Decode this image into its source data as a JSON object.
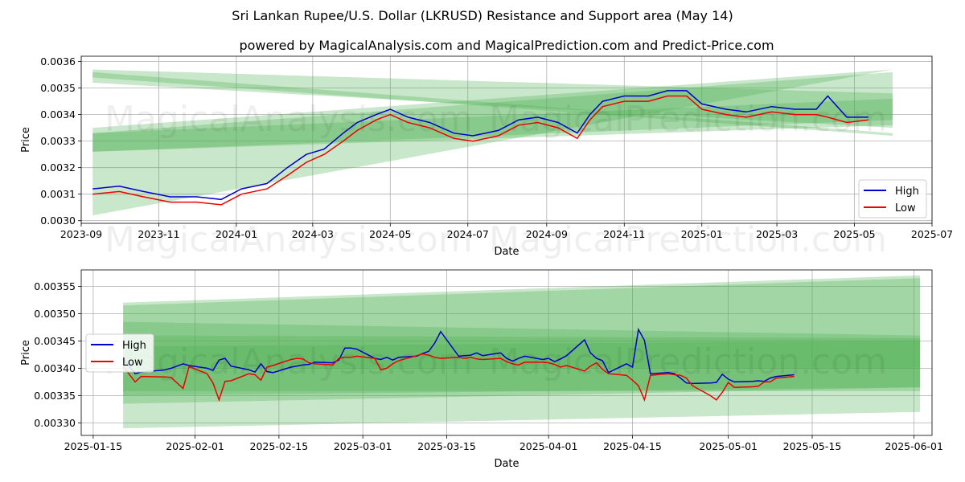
{
  "title": "Sri Lankan Rupee/U.S. Dollar (LKRUSD) Resistance and Support area (May 14)",
  "subtitle": "powered by MagicalAnalysis.com and MagicalPrediction.com and Predict-Price.com",
  "watermarks": [
    "MagicalAnalysis.com",
    "MagicalPrediction.com"
  ],
  "colors": {
    "high": "#0000cc",
    "low": "#ee0000",
    "band": "#4caf50"
  },
  "chart_data": [
    {
      "type": "line",
      "xlabel": "Date",
      "ylabel": "Price",
      "xlim": [
        "2023-09-01",
        "2025-07-01"
      ],
      "ylim": [
        0.00299,
        0.00362
      ],
      "x_ticks": [
        "2023-09",
        "2023-11",
        "2024-01",
        "2024-03",
        "2024-05",
        "2024-07",
        "2024-09",
        "2024-11",
        "2025-01",
        "2025-03",
        "2025-05",
        "2025-07"
      ],
      "x_tick_dates": [
        "2023-09-01",
        "2023-11-01",
        "2024-01-01",
        "2024-03-01",
        "2024-05-01",
        "2024-07-01",
        "2024-09-01",
        "2024-11-01",
        "2025-01-01",
        "2025-03-01",
        "2025-05-01",
        "2025-07-01"
      ],
      "y_ticks": [
        "0.0030",
        "0.0031",
        "0.0032",
        "0.0033",
        "0.0034",
        "0.0035",
        "0.0036"
      ],
      "y_tick_values": [
        0.003,
        0.0031,
        0.0032,
        0.0033,
        0.0034,
        0.0035,
        0.0036
      ],
      "grid": true,
      "legend": "lower right",
      "series": [
        {
          "name": "High",
          "x": [
            "2023-09-10",
            "2023-10-01",
            "2023-10-20",
            "2023-11-10",
            "2023-12-01",
            "2023-12-20",
            "2024-01-05",
            "2024-01-25",
            "2024-02-10",
            "2024-02-25",
            "2024-03-10",
            "2024-03-25",
            "2024-04-05",
            "2024-04-20",
            "2024-05-01",
            "2024-05-15",
            "2024-06-01",
            "2024-06-20",
            "2024-07-05",
            "2024-07-25",
            "2024-08-10",
            "2024-08-25",
            "2024-09-10",
            "2024-09-25",
            "2024-10-05",
            "2024-10-15",
            "2024-11-01",
            "2024-11-20",
            "2024-12-05",
            "2024-12-20",
            "2025-01-01",
            "2025-01-20",
            "2025-02-05",
            "2025-02-25",
            "2025-03-15",
            "2025-04-01",
            "2025-04-10",
            "2025-04-25",
            "2025-05-12"
          ],
          "y": [
            0.00312,
            0.00313,
            0.00311,
            0.00309,
            0.00309,
            0.00308,
            0.00312,
            0.00314,
            0.0032,
            0.00325,
            0.00327,
            0.00333,
            0.00337,
            0.0034,
            0.00342,
            0.00339,
            0.00337,
            0.00333,
            0.00332,
            0.00334,
            0.00338,
            0.00339,
            0.00337,
            0.00333,
            0.0034,
            0.00345,
            0.00347,
            0.00347,
            0.00349,
            0.00349,
            0.00344,
            0.00342,
            0.00341,
            0.00343,
            0.00342,
            0.00342,
            0.00347,
            0.00339,
            0.00339
          ]
        },
        {
          "name": "Low",
          "x": [
            "2023-09-10",
            "2023-10-01",
            "2023-10-20",
            "2023-11-10",
            "2023-12-01",
            "2023-12-20",
            "2024-01-05",
            "2024-01-25",
            "2024-02-10",
            "2024-02-25",
            "2024-03-10",
            "2024-03-25",
            "2024-04-05",
            "2024-04-20",
            "2024-05-01",
            "2024-05-15",
            "2024-06-01",
            "2024-06-20",
            "2024-07-05",
            "2024-07-25",
            "2024-08-10",
            "2024-08-25",
            "2024-09-10",
            "2024-09-25",
            "2024-10-05",
            "2024-10-15",
            "2024-11-01",
            "2024-11-20",
            "2024-12-05",
            "2024-12-20",
            "2025-01-01",
            "2025-01-20",
            "2025-02-05",
            "2025-02-25",
            "2025-03-15",
            "2025-04-01",
            "2025-04-10",
            "2025-04-25",
            "2025-05-12"
          ],
          "y": [
            0.0031,
            0.00311,
            0.00309,
            0.00307,
            0.00307,
            0.00306,
            0.0031,
            0.00312,
            0.00317,
            0.00322,
            0.00325,
            0.0033,
            0.00334,
            0.00338,
            0.0034,
            0.00337,
            0.00335,
            0.00331,
            0.0033,
            0.00332,
            0.00336,
            0.00337,
            0.00335,
            0.00331,
            0.00338,
            0.00343,
            0.00345,
            0.00345,
            0.00347,
            0.00347,
            0.00342,
            0.0034,
            0.00339,
            0.00341,
            0.0034,
            0.0034,
            0.00339,
            0.00337,
            0.00338
          ]
        }
      ],
      "bands": [
        {
          "x": [
            "2023-09-10",
            "2025-05-31"
          ],
          "upper": [
            0.00335,
            0.00357
          ],
          "lower": [
            0.00302,
            0.00357
          ]
        },
        {
          "x": [
            "2023-09-10",
            "2025-05-31"
          ],
          "upper": [
            0.00333,
            0.00356
          ],
          "lower": [
            0.00326,
            0.00336
          ]
        },
        {
          "x": [
            "2023-09-10",
            "2025-05-31"
          ],
          "upper": [
            0.00333,
            0.00346
          ],
          "lower": [
            0.00326,
            0.00338
          ]
        },
        {
          "x": [
            "2023-09-10",
            "2025-05-31"
          ],
          "upper": [
            0.00356,
            0.00333
          ],
          "lower": [
            0.00354,
            0.00332
          ]
        },
        {
          "x": [
            "2023-09-10",
            "2025-05-31"
          ],
          "upper": [
            0.00357,
            0.00348
          ],
          "lower": [
            0.00352,
            0.00335
          ]
        }
      ]
    },
    {
      "type": "line",
      "xlabel": "Date",
      "ylabel": "Price",
      "xlim": [
        "2025-01-13",
        "2025-06-04"
      ],
      "ylim": [
        0.003277,
        0.00358
      ],
      "x_ticks": [
        "2025-01-15",
        "2025-02-01",
        "2025-02-15",
        "2025-03-01",
        "2025-03-15",
        "2025-04-01",
        "2025-04-15",
        "2025-05-01",
        "2025-05-15",
        "2025-06-01"
      ],
      "x_tick_dates": [
        "2025-01-15",
        "2025-02-01",
        "2025-02-15",
        "2025-03-01",
        "2025-03-15",
        "2025-04-01",
        "2025-04-15",
        "2025-05-01",
        "2025-05-15",
        "2025-06-01"
      ],
      "y_ticks": [
        "0.00330",
        "0.00335",
        "0.00340",
        "0.00345",
        "0.00350",
        "0.00355"
      ],
      "y_tick_values": [
        0.0033,
        0.00335,
        0.0034,
        0.00345,
        0.0035,
        0.00355
      ],
      "grid": true,
      "legend": "center left",
      "series": [
        {
          "name": "High",
          "x": [
            "2025-01-20",
            "2025-01-22",
            "2025-01-23",
            "2025-01-27",
            "2025-01-28",
            "2025-01-30",
            "2025-01-31",
            "2025-02-03",
            "2025-02-04",
            "2025-02-05",
            "2025-02-06",
            "2025-02-07",
            "2025-02-10",
            "2025-02-11",
            "2025-02-12",
            "2025-02-13",
            "2025-02-14",
            "2025-02-17",
            "2025-02-18",
            "2025-02-19",
            "2025-02-20",
            "2025-02-21",
            "2025-02-24",
            "2025-02-25",
            "2025-02-26",
            "2025-02-27",
            "2025-02-28",
            "2025-03-03",
            "2025-03-04",
            "2025-03-05",
            "2025-03-06",
            "2025-03-07",
            "2025-03-10",
            "2025-03-11",
            "2025-03-12",
            "2025-03-13",
            "2025-03-14",
            "2025-03-17",
            "2025-03-18",
            "2025-03-19",
            "2025-03-20",
            "2025-03-21",
            "2025-03-24",
            "2025-03-25",
            "2025-03-26",
            "2025-03-27",
            "2025-03-28",
            "2025-03-31",
            "2025-04-01",
            "2025-04-02",
            "2025-04-03",
            "2025-04-04",
            "2025-04-07",
            "2025-04-08",
            "2025-04-09",
            "2025-04-10",
            "2025-04-11",
            "2025-04-14",
            "2025-04-15",
            "2025-04-16",
            "2025-04-17",
            "2025-04-18",
            "2025-04-21",
            "2025-04-22",
            "2025-04-23",
            "2025-04-24",
            "2025-04-25",
            "2025-04-28",
            "2025-04-29",
            "2025-04-30",
            "2025-05-01",
            "2025-05-02",
            "2025-05-05",
            "2025-05-06",
            "2025-05-07",
            "2025-05-08",
            "2025-05-09",
            "2025-05-12"
          ],
          "y": [
            0.003417,
            0.00339,
            0.003393,
            0.003397,
            0.0034,
            0.003408,
            0.003405,
            0.0034,
            0.003396,
            0.003415,
            0.003418,
            0.003404,
            0.003397,
            0.003393,
            0.003408,
            0.003394,
            0.003392,
            0.003402,
            0.003404,
            0.003406,
            0.003407,
            0.003411,
            0.00341,
            0.003415,
            0.003437,
            0.003437,
            0.003435,
            0.003418,
            0.003416,
            0.00342,
            0.003415,
            0.00342,
            0.003422,
            0.003427,
            0.003431,
            0.003446,
            0.003467,
            0.003422,
            0.003423,
            0.003424,
            0.003428,
            0.003423,
            0.003428,
            0.003418,
            0.003413,
            0.003418,
            0.003422,
            0.003416,
            0.003418,
            0.003412,
            0.003417,
            0.003423,
            0.003452,
            0.003428,
            0.003418,
            0.003414,
            0.003392,
            0.003408,
            0.003402,
            0.003471,
            0.003451,
            0.00339,
            0.003392,
            0.00339,
            0.003382,
            0.003373,
            0.003372,
            0.003373,
            0.003374,
            0.003389,
            0.00338,
            0.003375,
            0.003376,
            0.003377,
            0.003376,
            0.003382,
            0.003385,
            0.003388
          ]
        },
        {
          "name": "Low",
          "x": [
            "2025-01-20",
            "2025-01-22",
            "2025-01-23",
            "2025-01-27",
            "2025-01-28",
            "2025-01-30",
            "2025-01-31",
            "2025-02-03",
            "2025-02-04",
            "2025-02-05",
            "2025-02-06",
            "2025-02-07",
            "2025-02-10",
            "2025-02-11",
            "2025-02-12",
            "2025-02-13",
            "2025-02-14",
            "2025-02-17",
            "2025-02-18",
            "2025-02-19",
            "2025-02-20",
            "2025-02-21",
            "2025-02-24",
            "2025-02-25",
            "2025-02-26",
            "2025-02-27",
            "2025-02-28",
            "2025-03-03",
            "2025-03-04",
            "2025-03-05",
            "2025-03-06",
            "2025-03-07",
            "2025-03-10",
            "2025-03-11",
            "2025-03-12",
            "2025-03-13",
            "2025-03-14",
            "2025-03-17",
            "2025-03-18",
            "2025-03-19",
            "2025-03-20",
            "2025-03-21",
            "2025-03-24",
            "2025-03-25",
            "2025-03-26",
            "2025-03-27",
            "2025-03-28",
            "2025-03-31",
            "2025-04-01",
            "2025-04-02",
            "2025-04-03",
            "2025-04-04",
            "2025-04-07",
            "2025-04-08",
            "2025-04-09",
            "2025-04-10",
            "2025-04-11",
            "2025-04-14",
            "2025-04-15",
            "2025-04-16",
            "2025-04-17",
            "2025-04-18",
            "2025-04-21",
            "2025-04-22",
            "2025-04-23",
            "2025-04-24",
            "2025-04-25",
            "2025-04-28",
            "2025-04-29",
            "2025-04-30",
            "2025-05-01",
            "2025-05-02",
            "2025-05-05",
            "2025-05-06",
            "2025-05-07",
            "2025-05-08",
            "2025-05-09",
            "2025-05-12"
          ],
          "y": [
            0.003403,
            0.003375,
            0.003385,
            0.003384,
            0.003383,
            0.003363,
            0.003403,
            0.00339,
            0.003373,
            0.003342,
            0.003376,
            0.003377,
            0.00339,
            0.003388,
            0.003378,
            0.003402,
            0.003405,
            0.003416,
            0.003418,
            0.003417,
            0.00341,
            0.003408,
            0.003406,
            0.003418,
            0.00342,
            0.00342,
            0.003422,
            0.003418,
            0.003397,
            0.0034,
            0.003408,
            0.003414,
            0.003423,
            0.003426,
            0.003424,
            0.00342,
            0.003418,
            0.00342,
            0.003418,
            0.00342,
            0.003417,
            0.003416,
            0.003418,
            0.003412,
            0.003408,
            0.003406,
            0.003411,
            0.003411,
            0.00341,
            0.003407,
            0.003402,
            0.003405,
            0.003395,
            0.003404,
            0.00341,
            0.003398,
            0.00339,
            0.003387,
            0.003378,
            0.003368,
            0.003342,
            0.003387,
            0.00339,
            0.003388,
            0.003387,
            0.003382,
            0.003368,
            0.00335,
            0.003342,
            0.003356,
            0.003374,
            0.003365,
            0.003366,
            0.003367,
            0.003375,
            0.003375,
            0.003382,
            0.003385
          ]
        }
      ],
      "bands": [
        {
          "x": [
            "2025-01-20",
            "2025-06-02"
          ],
          "upper": [
            0.00352,
            0.00357
          ],
          "lower": [
            0.00329,
            0.00332
          ]
        },
        {
          "x": [
            "2025-01-20",
            "2025-06-02"
          ],
          "upper": [
            0.003515,
            0.003565
          ],
          "lower": [
            0.00335,
            0.003365
          ]
        },
        {
          "x": [
            "2025-01-20",
            "2025-06-02"
          ],
          "upper": [
            0.003485,
            0.00346
          ],
          "lower": [
            0.003335,
            0.003365
          ]
        },
        {
          "x": [
            "2025-01-20",
            "2025-06-02"
          ],
          "upper": [
            0.00346,
            0.003455
          ],
          "lower": [
            0.003358,
            0.003358
          ]
        },
        {
          "x": [
            "2025-01-20",
            "2025-06-02"
          ],
          "upper": [
            0.00344,
            0.00345
          ],
          "lower": [
            0.0034,
            0.0034
          ]
        }
      ]
    }
  ]
}
